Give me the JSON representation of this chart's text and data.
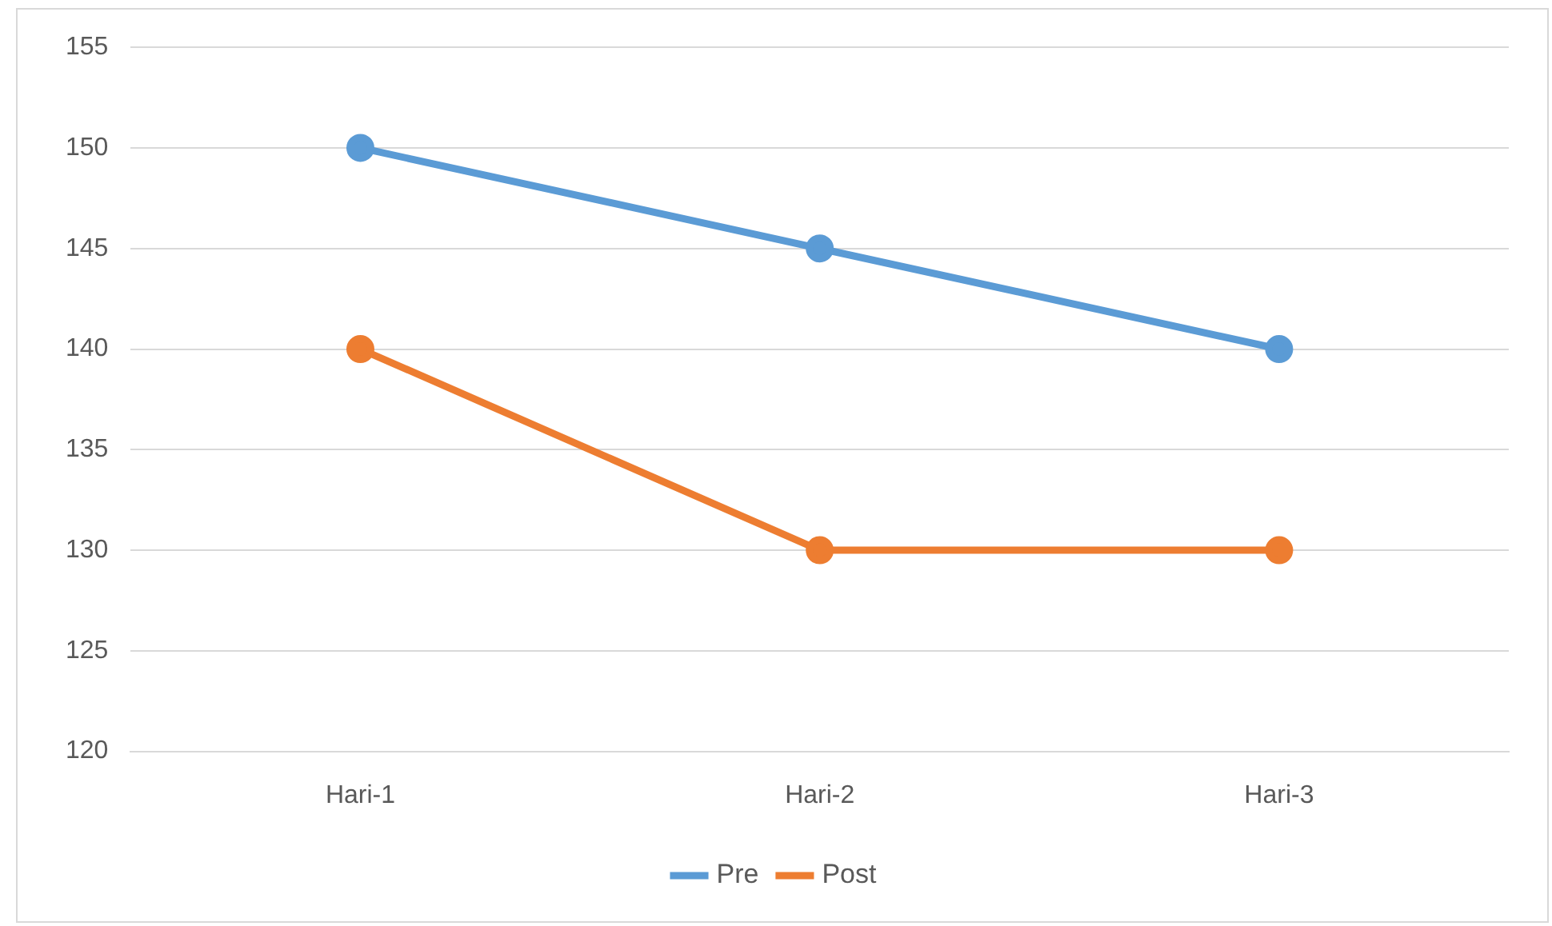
{
  "chart_data": {
    "type": "line",
    "categories": [
      "Hari-1",
      "Hari-2",
      "Hari-3"
    ],
    "series": [
      {
        "name": "Pre",
        "color": "#5b9bd5",
        "values": [
          150,
          145,
          140
        ]
      },
      {
        "name": "Post",
        "color": "#ed7d31",
        "values": [
          140,
          130,
          130
        ]
      }
    ],
    "ylim": [
      120,
      155
    ],
    "yticks": [
      120,
      125,
      130,
      135,
      140,
      145,
      150,
      155
    ],
    "grid": "y",
    "legend": "bottom",
    "marker": "circle",
    "line_style": "solid"
  }
}
